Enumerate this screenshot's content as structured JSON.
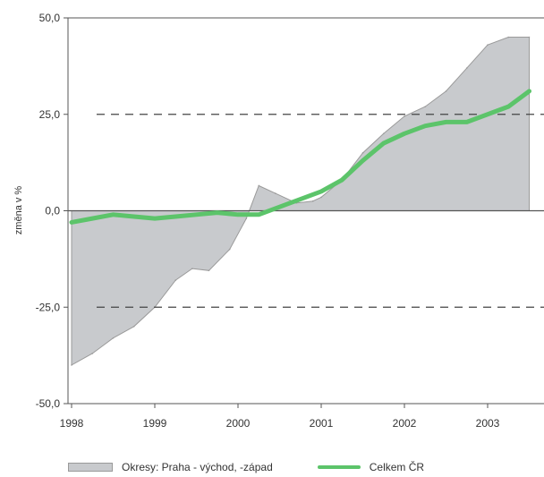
{
  "chart_data": {
    "type": "area",
    "title": "",
    "xlabel": "",
    "ylabel": "změna v %",
    "ylim": [
      -50,
      50
    ],
    "xlim": [
      1998,
      2003.5
    ],
    "yticks": [
      50,
      25,
      0,
      -25,
      -50
    ],
    "ytick_labels": [
      "50,0",
      "25,0",
      "0,0",
      "-25,0",
      "-50,0"
    ],
    "xticks": [
      1998,
      1999,
      2000,
      2001,
      2002,
      2003
    ],
    "xtick_labels": [
      "1998",
      "1999",
      "2000",
      "2001",
      "2002",
      "2003"
    ],
    "reference_lines": [
      25,
      -25
    ],
    "grid": false,
    "legend_position": "bottom",
    "series": [
      {
        "name": "Okresy: Praha - východ, -západ",
        "kind": "area",
        "color": "#c8cacd",
        "x": [
          1998,
          1998.25,
          1998.5,
          1998.75,
          1999,
          1999.25,
          1999.45,
          1999.65,
          1999.9,
          2000.1,
          2000.25,
          2000.45,
          2000.7,
          2000.9,
          2001,
          2001.25,
          2001.5,
          2001.75,
          2002,
          2002.25,
          2002.5,
          2002.75,
          2003,
          2003.25,
          2003.5
        ],
        "values": [
          -40,
          -37,
          -33,
          -30,
          -25,
          -18,
          -15,
          -15.5,
          -10,
          -2,
          6.5,
          4.5,
          2,
          2.5,
          3.5,
          8,
          15,
          20,
          24.5,
          27,
          31,
          37,
          43,
          45,
          45
        ]
      },
      {
        "name": "Celkem ČR",
        "kind": "line",
        "color": "#5cc46a",
        "x": [
          1998,
          1998.25,
          1998.5,
          1998.75,
          1999,
          1999.25,
          1999.5,
          1999.75,
          2000,
          2000.25,
          2000.5,
          2000.75,
          2001,
          2001.25,
          2001.5,
          2001.75,
          2002,
          2002.25,
          2002.5,
          2002.75,
          2003,
          2003.25,
          2003.5
        ],
        "values": [
          -3,
          -2,
          -1,
          -1.5,
          -2,
          -1.5,
          -1,
          -0.5,
          -1,
          -1,
          1,
          3,
          5,
          8,
          13,
          17.5,
          20,
          22,
          23,
          23,
          25,
          27,
          31
        ]
      }
    ]
  }
}
